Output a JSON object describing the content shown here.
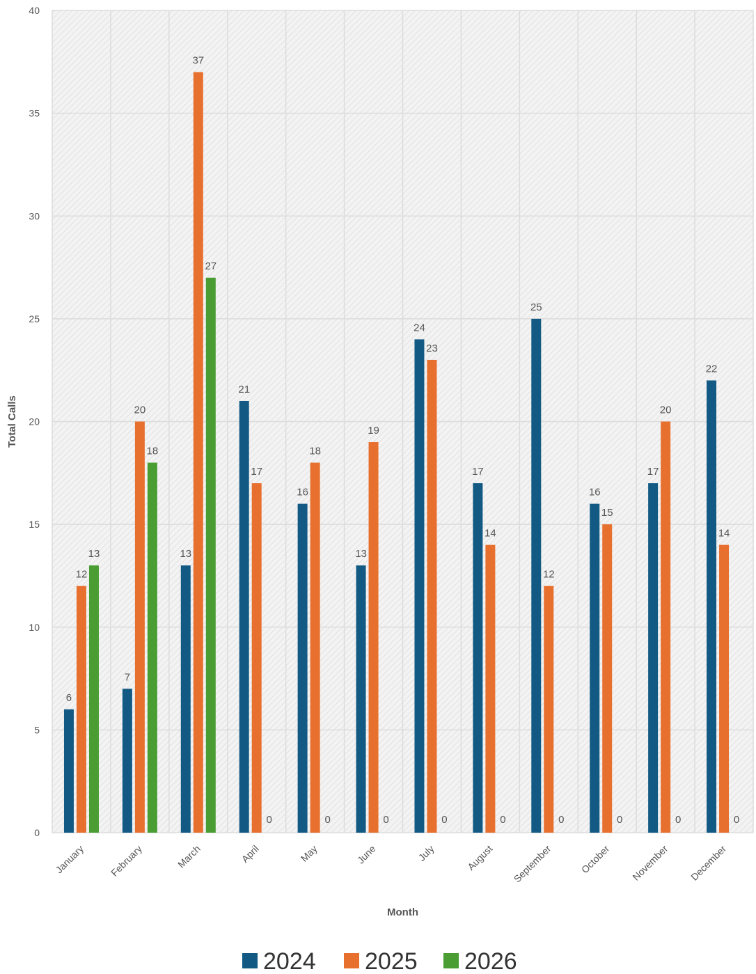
{
  "chart_data": {
    "type": "bar",
    "title": "",
    "xlabel": "Month",
    "ylabel": "Total Calls",
    "ylim": [
      0,
      40
    ],
    "yticks": [
      0,
      5,
      10,
      15,
      20,
      25,
      30,
      35,
      40
    ],
    "grid": true,
    "legend_position": "bottom",
    "categories": [
      "January",
      "February",
      "March",
      "April",
      "May",
      "June",
      "July",
      "August",
      "September",
      "October",
      "November",
      "December"
    ],
    "series": [
      {
        "name": "2024",
        "color": "#125a84",
        "values": [
          6,
          7,
          13,
          21,
          16,
          13,
          24,
          17,
          25,
          16,
          17,
          22
        ]
      },
      {
        "name": "2025",
        "color": "#e8702f",
        "values": [
          12,
          20,
          37,
          17,
          18,
          19,
          23,
          14,
          12,
          15,
          20,
          14
        ]
      },
      {
        "name": "2026",
        "color": "#4a9d32",
        "values": [
          13,
          18,
          27,
          0,
          0,
          0,
          0,
          0,
          0,
          0,
          0,
          0
        ]
      }
    ],
    "plot_background": "#f1f1f1",
    "gridline_color": "#dcdcdc"
  }
}
